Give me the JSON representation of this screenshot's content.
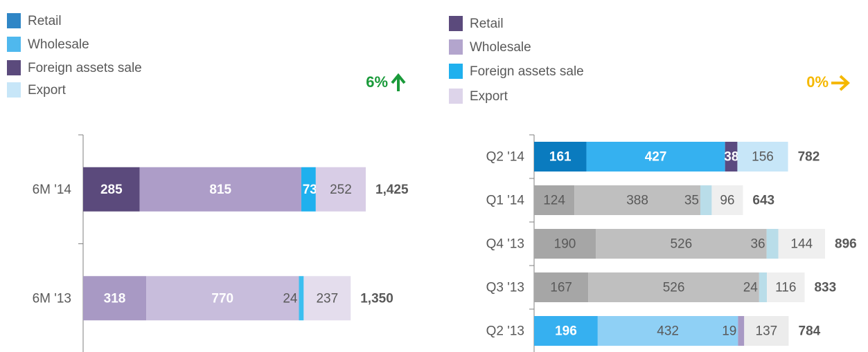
{
  "chart_data": [
    {
      "type": "bar",
      "orientation": "horizontal",
      "stacked": true,
      "legend": "top-left",
      "categories": [
        "6M '14",
        "6M '13"
      ],
      "series": [
        {
          "name": "Retail",
          "color": "#2f86c6",
          "colors": [
            "#5b4a7c",
            "#a899c4"
          ],
          "label_colors": [
            "#ffffff",
            "#ffffff"
          ],
          "values": [
            285,
            318
          ]
        },
        {
          "name": "Wholesale",
          "color": "#4fb8ee",
          "colors": [
            "#ad9dc8",
            "#c8bddc"
          ],
          "label_colors": [
            "#ffffff",
            "#ffffff"
          ],
          "values": [
            815,
            770
          ]
        },
        {
          "name": "Foreign assets sale",
          "color": "#5b4a7c",
          "colors": [
            "#1fb0ee",
            "#3bbff0"
          ],
          "label_colors": [
            "#ffffff",
            "#595959"
          ],
          "values": [
            73,
            24
          ]
        },
        {
          "name": "Export",
          "color": "#c7e6f8",
          "colors": [
            "#d8cde6",
            "#e4dded"
          ],
          "label_colors": [
            "#595959",
            "#595959"
          ],
          "values": [
            252,
            237
          ]
        }
      ],
      "totals": [
        1425,
        1350
      ],
      "total_labels": [
        "1,425",
        "1,350"
      ],
      "annotation": "6%",
      "annotation_color": "#1a9a3a",
      "annotation_direction": "up"
    },
    {
      "type": "bar",
      "orientation": "horizontal",
      "stacked": true,
      "legend": "top-left",
      "categories": [
        "Q2 '14",
        "Q1 '14",
        "Q4 '13",
        "Q3 '13",
        "Q2 '13"
      ],
      "series": [
        {
          "name": "Retail",
          "color": "#5b4a7c",
          "colors": [
            "#0a7bbf",
            "#a6a6a6",
            "#a6a6a6",
            "#a6a6a6",
            "#36b0f0"
          ],
          "label_colors": [
            "#ffffff",
            "#595959",
            "#595959",
            "#595959",
            "#ffffff"
          ],
          "values": [
            161,
            124,
            190,
            167,
            196
          ]
        },
        {
          "name": "Wholesale",
          "color": "#b3a5cd",
          "colors": [
            "#35b1f0",
            "#bfbfbf",
            "#bfbfbf",
            "#bfbfbf",
            "#8fd0f5"
          ],
          "label_colors": [
            "#ffffff",
            "#595959",
            "#595959",
            "#595959",
            "#595959"
          ],
          "values": [
            427,
            388,
            526,
            526,
            432
          ]
        },
        {
          "name": "Foreign assets sale",
          "color": "#1fb0ee",
          "colors": [
            "#5a4a80",
            "#b9dde9",
            "#b9dde9",
            "#b9dde9",
            "#a899c4"
          ],
          "label_colors": [
            "#ffffff",
            "#595959",
            "#595959",
            "#595959",
            "#595959"
          ],
          "values": [
            38,
            35,
            36,
            24,
            19
          ]
        },
        {
          "name": "Export",
          "color": "#ddd4ea",
          "colors": [
            "#c7e6f8",
            "#efefef",
            "#efefef",
            "#efefef",
            "#ececec"
          ],
          "label_colors": [
            "#595959",
            "#595959",
            "#595959",
            "#595959",
            "#595959"
          ],
          "values": [
            156,
            96,
            144,
            116,
            137
          ]
        }
      ],
      "totals": [
        782,
        643,
        896,
        833,
        784
      ],
      "total_labels": [
        "782",
        "643",
        "896",
        "833",
        "784"
      ],
      "annotation": "0%",
      "annotation_color": "#f5b800",
      "annotation_direction": "right"
    }
  ]
}
